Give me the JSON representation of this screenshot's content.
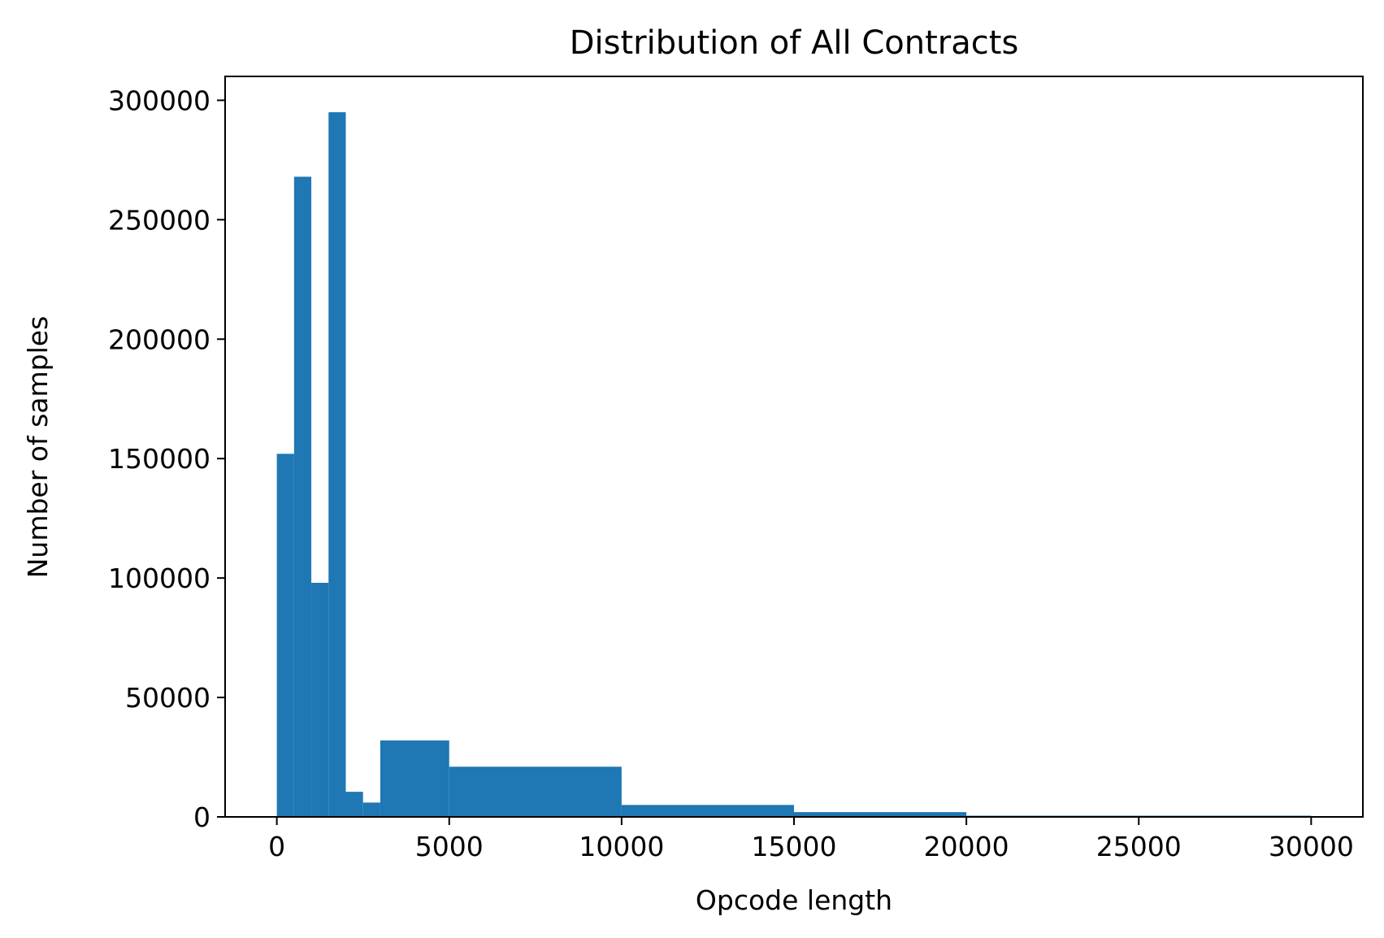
{
  "chart_data": {
    "type": "bar",
    "title": "Distribution of All Contracts",
    "xlabel": "Opcode length",
    "ylabel": "Number of samples",
    "xlim": [
      -1500,
      31500
    ],
    "ylim": [
      0,
      310000
    ],
    "xticks": [
      0,
      5000,
      10000,
      15000,
      20000,
      25000,
      30000
    ],
    "yticks": [
      0,
      50000,
      100000,
      150000,
      200000,
      250000,
      300000
    ],
    "grid": false,
    "bar_color": "#1f77b4",
    "bins": [
      {
        "x0": 0,
        "x1": 500,
        "value": 152000
      },
      {
        "x0": 500,
        "x1": 1000,
        "value": 268000
      },
      {
        "x0": 1000,
        "x1": 1500,
        "value": 98000
      },
      {
        "x0": 1500,
        "x1": 2000,
        "value": 295000
      },
      {
        "x0": 2000,
        "x1": 2500,
        "value": 10500
      },
      {
        "x0": 2500,
        "x1": 3000,
        "value": 6000
      },
      {
        "x0": 3000,
        "x1": 5000,
        "value": 32000
      },
      {
        "x0": 5000,
        "x1": 10000,
        "value": 21000
      },
      {
        "x0": 10000,
        "x1": 15000,
        "value": 5000
      },
      {
        "x0": 15000,
        "x1": 20000,
        "value": 2000
      },
      {
        "x0": 20000,
        "x1": 30000,
        "value": 500
      }
    ]
  }
}
